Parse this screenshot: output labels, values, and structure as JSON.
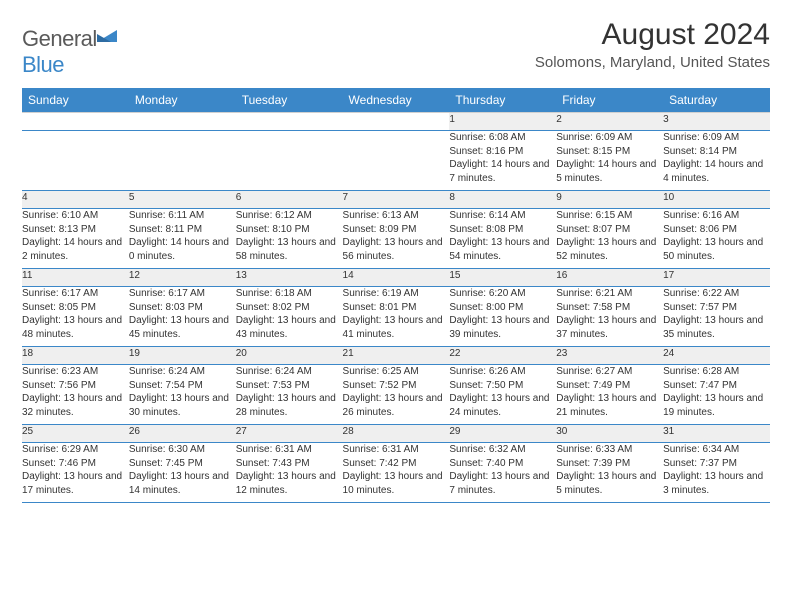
{
  "brand": {
    "part1": "General",
    "part2": "Blue"
  },
  "title": "August 2024",
  "location": "Solomons, Maryland, United States",
  "colors": {
    "header_bg": "#3b87c8",
    "header_text": "#ffffff",
    "daynum_bg": "#efefef",
    "row_divider": "#3b87c8",
    "page_bg": "#ffffff"
  },
  "day_headers": [
    "Sunday",
    "Monday",
    "Tuesday",
    "Wednesday",
    "Thursday",
    "Friday",
    "Saturday"
  ],
  "weeks": [
    [
      null,
      null,
      null,
      null,
      {
        "n": "1",
        "sunrise": "6:08 AM",
        "sunset": "8:16 PM",
        "daylight": "14 hours and 7 minutes."
      },
      {
        "n": "2",
        "sunrise": "6:09 AM",
        "sunset": "8:15 PM",
        "daylight": "14 hours and 5 minutes."
      },
      {
        "n": "3",
        "sunrise": "6:09 AM",
        "sunset": "8:14 PM",
        "daylight": "14 hours and 4 minutes."
      }
    ],
    [
      {
        "n": "4",
        "sunrise": "6:10 AM",
        "sunset": "8:13 PM",
        "daylight": "14 hours and 2 minutes."
      },
      {
        "n": "5",
        "sunrise": "6:11 AM",
        "sunset": "8:11 PM",
        "daylight": "14 hours and 0 minutes."
      },
      {
        "n": "6",
        "sunrise": "6:12 AM",
        "sunset": "8:10 PM",
        "daylight": "13 hours and 58 minutes."
      },
      {
        "n": "7",
        "sunrise": "6:13 AM",
        "sunset": "8:09 PM",
        "daylight": "13 hours and 56 minutes."
      },
      {
        "n": "8",
        "sunrise": "6:14 AM",
        "sunset": "8:08 PM",
        "daylight": "13 hours and 54 minutes."
      },
      {
        "n": "9",
        "sunrise": "6:15 AM",
        "sunset": "8:07 PM",
        "daylight": "13 hours and 52 minutes."
      },
      {
        "n": "10",
        "sunrise": "6:16 AM",
        "sunset": "8:06 PM",
        "daylight": "13 hours and 50 minutes."
      }
    ],
    [
      {
        "n": "11",
        "sunrise": "6:17 AM",
        "sunset": "8:05 PM",
        "daylight": "13 hours and 48 minutes."
      },
      {
        "n": "12",
        "sunrise": "6:17 AM",
        "sunset": "8:03 PM",
        "daylight": "13 hours and 45 minutes."
      },
      {
        "n": "13",
        "sunrise": "6:18 AM",
        "sunset": "8:02 PM",
        "daylight": "13 hours and 43 minutes."
      },
      {
        "n": "14",
        "sunrise": "6:19 AM",
        "sunset": "8:01 PM",
        "daylight": "13 hours and 41 minutes."
      },
      {
        "n": "15",
        "sunrise": "6:20 AM",
        "sunset": "8:00 PM",
        "daylight": "13 hours and 39 minutes."
      },
      {
        "n": "16",
        "sunrise": "6:21 AM",
        "sunset": "7:58 PM",
        "daylight": "13 hours and 37 minutes."
      },
      {
        "n": "17",
        "sunrise": "6:22 AM",
        "sunset": "7:57 PM",
        "daylight": "13 hours and 35 minutes."
      }
    ],
    [
      {
        "n": "18",
        "sunrise": "6:23 AM",
        "sunset": "7:56 PM",
        "daylight": "13 hours and 32 minutes."
      },
      {
        "n": "19",
        "sunrise": "6:24 AM",
        "sunset": "7:54 PM",
        "daylight": "13 hours and 30 minutes."
      },
      {
        "n": "20",
        "sunrise": "6:24 AM",
        "sunset": "7:53 PM",
        "daylight": "13 hours and 28 minutes."
      },
      {
        "n": "21",
        "sunrise": "6:25 AM",
        "sunset": "7:52 PM",
        "daylight": "13 hours and 26 minutes."
      },
      {
        "n": "22",
        "sunrise": "6:26 AM",
        "sunset": "7:50 PM",
        "daylight": "13 hours and 24 minutes."
      },
      {
        "n": "23",
        "sunrise": "6:27 AM",
        "sunset": "7:49 PM",
        "daylight": "13 hours and 21 minutes."
      },
      {
        "n": "24",
        "sunrise": "6:28 AM",
        "sunset": "7:47 PM",
        "daylight": "13 hours and 19 minutes."
      }
    ],
    [
      {
        "n": "25",
        "sunrise": "6:29 AM",
        "sunset": "7:46 PM",
        "daylight": "13 hours and 17 minutes."
      },
      {
        "n": "26",
        "sunrise": "6:30 AM",
        "sunset": "7:45 PM",
        "daylight": "13 hours and 14 minutes."
      },
      {
        "n": "27",
        "sunrise": "6:31 AM",
        "sunset": "7:43 PM",
        "daylight": "13 hours and 12 minutes."
      },
      {
        "n": "28",
        "sunrise": "6:31 AM",
        "sunset": "7:42 PM",
        "daylight": "13 hours and 10 minutes."
      },
      {
        "n": "29",
        "sunrise": "6:32 AM",
        "sunset": "7:40 PM",
        "daylight": "13 hours and 7 minutes."
      },
      {
        "n": "30",
        "sunrise": "6:33 AM",
        "sunset": "7:39 PM",
        "daylight": "13 hours and 5 minutes."
      },
      {
        "n": "31",
        "sunrise": "6:34 AM",
        "sunset": "7:37 PM",
        "daylight": "13 hours and 3 minutes."
      }
    ]
  ],
  "labels": {
    "sunrise": "Sunrise: ",
    "sunset": "Sunset: ",
    "daylight": "Daylight: "
  }
}
